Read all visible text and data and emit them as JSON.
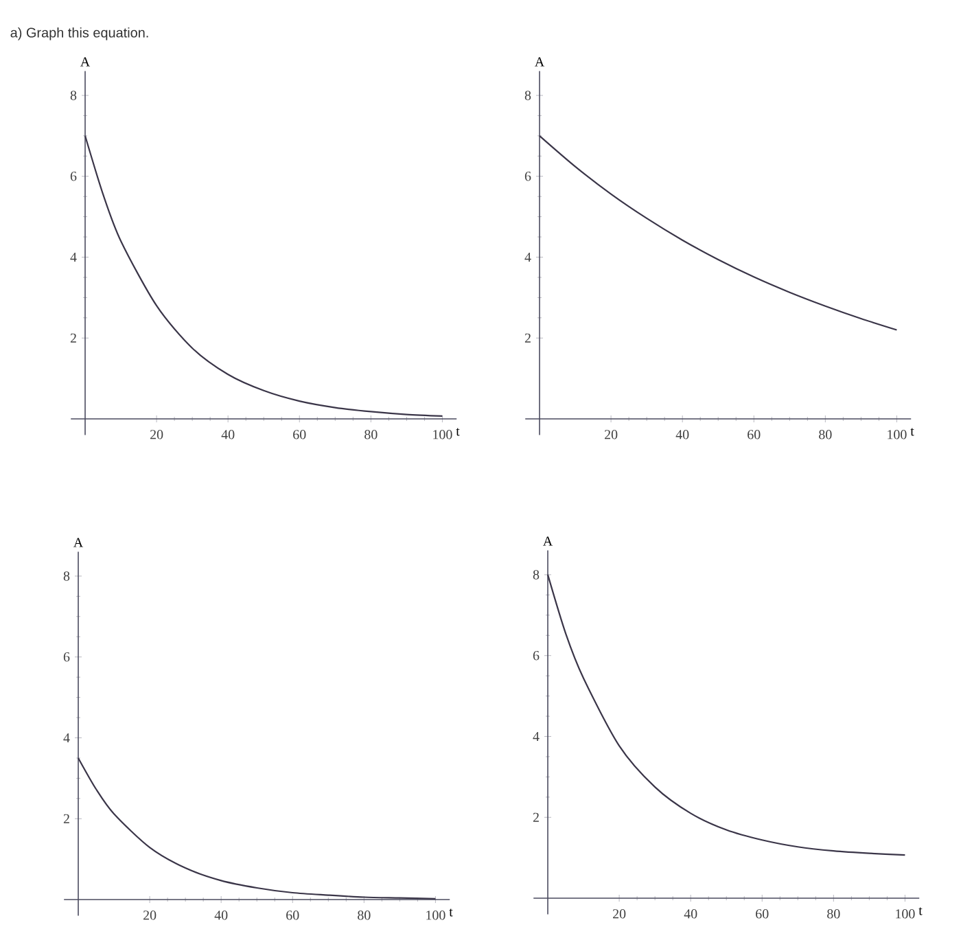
{
  "chart_data": [
    {
      "type": "line",
      "title": "a) Graph this equation.",
      "xlabel": "t",
      "ylabel": "A",
      "color": "#3a3548",
      "x": [
        0,
        5,
        10,
        20,
        30,
        40,
        50,
        60,
        70,
        80,
        90,
        100
      ],
      "values": [
        7,
        5.56,
        4.4,
        2.8,
        1.75,
        1.1,
        0.7,
        0.44,
        0.28,
        0.18,
        0.11,
        0.07
      ],
      "xlim": [
        -4,
        104
      ],
      "ylim": [
        -0.4,
        8.6
      ],
      "xticks": [
        20,
        40,
        60,
        80,
        100
      ],
      "yticks": [
        2,
        4,
        6,
        8
      ]
    },
    {
      "type": "line",
      "xlabel": "t",
      "ylabel": "A",
      "color": "#3a3548",
      "x": [
        0,
        10,
        20,
        30,
        40,
        50,
        60,
        70,
        80,
        90,
        100
      ],
      "values": [
        7,
        6.24,
        5.56,
        4.96,
        4.42,
        3.94,
        3.51,
        3.13,
        2.79,
        2.48,
        2.2
      ],
      "xlim": [
        -4,
        104
      ],
      "ylim": [
        -0.4,
        8.6
      ],
      "xticks": [
        20,
        40,
        60,
        80,
        100
      ],
      "yticks": [
        2,
        4,
        6,
        8
      ]
    },
    {
      "type": "line",
      "xlabel": "t",
      "ylabel": "A",
      "color": "#3a3548",
      "x": [
        0,
        5,
        10,
        20,
        30,
        40,
        50,
        60,
        70,
        80,
        90,
        100
      ],
      "values": [
        3.5,
        2.73,
        2.12,
        1.29,
        0.78,
        0.47,
        0.29,
        0.17,
        0.11,
        0.06,
        0.04,
        0.02
      ],
      "xlim": [
        -4,
        104
      ],
      "ylim": [
        -0.4,
        8.6
      ],
      "xticks": [
        20,
        40,
        60,
        80,
        100
      ],
      "yticks": [
        2,
        4,
        6,
        8
      ]
    },
    {
      "type": "line",
      "xlabel": "t",
      "ylabel": "A",
      "color": "#3a3548",
      "x": [
        0,
        5,
        10,
        20,
        30,
        40,
        50,
        60,
        70,
        80,
        90,
        100
      ],
      "values": [
        8,
        6.55,
        5.44,
        3.77,
        2.75,
        2.1,
        1.69,
        1.44,
        1.27,
        1.17,
        1.11,
        1.07
      ],
      "xlim": [
        -4,
        104
      ],
      "ylim": [
        -0.4,
        8.6
      ],
      "xticks": [
        20,
        40,
        60,
        80,
        100
      ],
      "yticks": [
        2,
        4,
        6,
        8
      ]
    }
  ]
}
